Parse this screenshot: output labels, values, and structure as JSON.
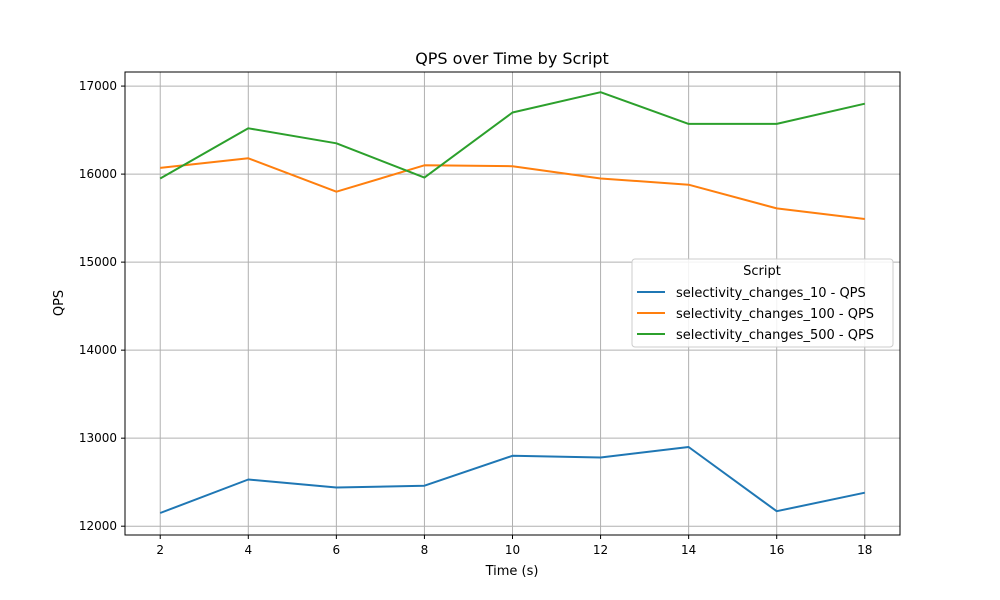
{
  "chart_data": {
    "type": "line",
    "title": "QPS over Time by Script",
    "xlabel": "Time (s)",
    "ylabel": "QPS",
    "x": [
      2,
      4,
      6,
      8,
      10,
      12,
      14,
      16,
      18
    ],
    "xlim": [
      1.2,
      18.8
    ],
    "ylim": [
      11900,
      17160
    ],
    "xticks": [
      2,
      4,
      6,
      8,
      10,
      12,
      14,
      16,
      18
    ],
    "yticks": [
      12000,
      13000,
      14000,
      15000,
      16000,
      17000
    ],
    "grid": true,
    "legend": {
      "title": "Script",
      "placement": "center-right"
    },
    "series": [
      {
        "name": "selectivity_changes_10 - QPS",
        "color": "#1f77b4",
        "values": [
          12150,
          12530,
          12440,
          12460,
          12800,
          12780,
          12900,
          12170,
          12380
        ]
      },
      {
        "name": "selectivity_changes_100 - QPS",
        "color": "#ff7f0e",
        "values": [
          16070,
          16180,
          15800,
          16100,
          16090,
          15950,
          15880,
          15610,
          15490
        ]
      },
      {
        "name": "selectivity_changes_500 - QPS",
        "color": "#2ca02c",
        "values": [
          15950,
          16520,
          16350,
          15960,
          16700,
          16930,
          16570,
          16570,
          16800
        ]
      }
    ]
  }
}
